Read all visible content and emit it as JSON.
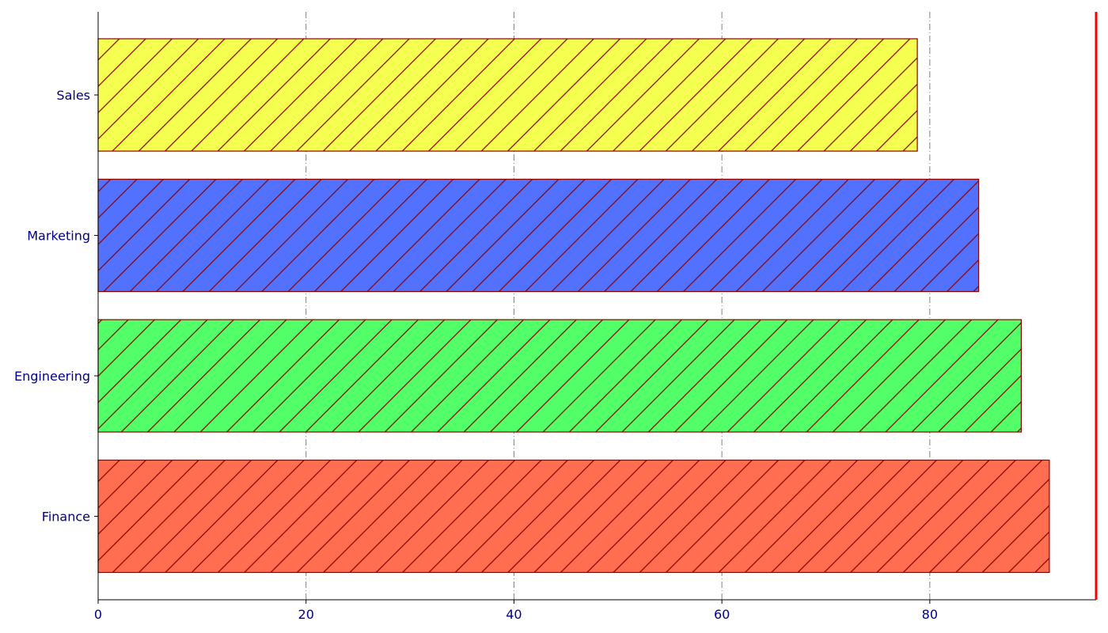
{
  "chart_data": {
    "type": "bar",
    "orientation": "horizontal",
    "categories": [
      "Sales",
      "Marketing",
      "Engineering",
      "Finance"
    ],
    "values": [
      78.8,
      84.7,
      88.8,
      91.5
    ],
    "colors": [
      "#f5ff50",
      "#5271ff",
      "#52ff69",
      "#ff6e50"
    ],
    "edge_color": "#8b0000",
    "hatch": "/",
    "x_ticks": [
      0,
      20,
      40,
      60,
      80
    ],
    "x_tick_labels": [
      "0",
      "20",
      "40",
      "60",
      "80"
    ],
    "xlim": [
      0,
      96
    ],
    "grid": "vertical dash-dot",
    "reference_line": {
      "x": 96,
      "color": "#ff0000"
    },
    "title": "",
    "xlabel": "",
    "ylabel": ""
  }
}
